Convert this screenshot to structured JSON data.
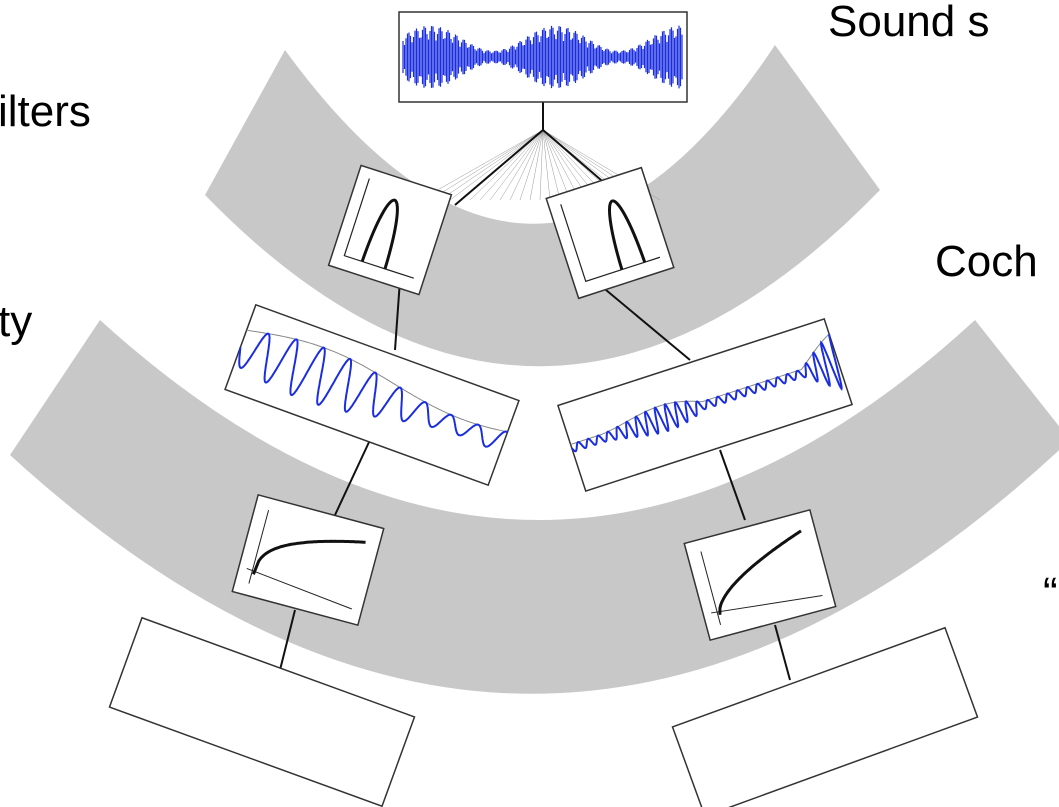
{
  "labels": {
    "top_right": "Sound s",
    "top_left": "ilters",
    "middle_left": "ty",
    "middle_right": "Coch",
    "bottom_right": "“"
  }
}
